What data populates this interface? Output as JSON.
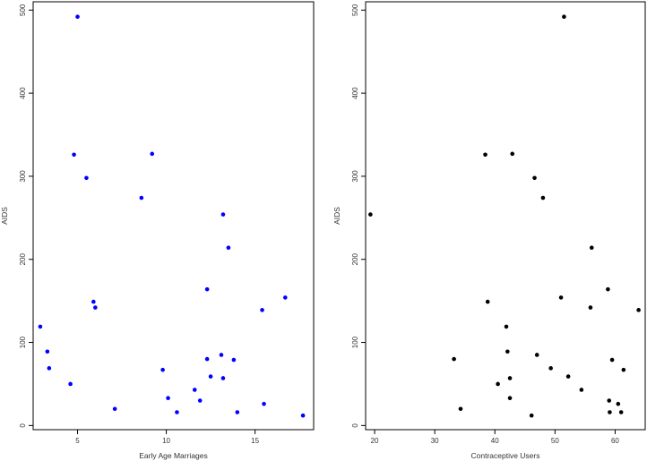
{
  "chart_data": [
    {
      "type": "scatter",
      "xlabel": "Early Age Marriages",
      "ylabel": "AIDS",
      "xlim": [
        2.5,
        18.3
      ],
      "ylim": [
        -5,
        510
      ],
      "xticks": [
        5,
        10,
        15
      ],
      "yticks": [
        0,
        100,
        200,
        300,
        400,
        500
      ],
      "point_color": "#0000ff",
      "grid": false,
      "points": [
        [
          5.0,
          492
        ],
        [
          4.8,
          326
        ],
        [
          5.5,
          298
        ],
        [
          9.2,
          327
        ],
        [
          8.6,
          274
        ],
        [
          13.2,
          254
        ],
        [
          13.5,
          214
        ],
        [
          12.3,
          164
        ],
        [
          16.7,
          154
        ],
        [
          15.4,
          139
        ],
        [
          5.9,
          149
        ],
        [
          6.0,
          142
        ],
        [
          2.9,
          119
        ],
        [
          3.3,
          89
        ],
        [
          3.4,
          69
        ],
        [
          4.6,
          50
        ],
        [
          7.1,
          20
        ],
        [
          9.8,
          67
        ],
        [
          10.1,
          33
        ],
        [
          10.6,
          16
        ],
        [
          11.6,
          43
        ],
        [
          11.9,
          30
        ],
        [
          12.3,
          80
        ],
        [
          12.5,
          59
        ],
        [
          13.1,
          85
        ],
        [
          13.2,
          57
        ],
        [
          13.8,
          79
        ],
        [
          14.0,
          16
        ],
        [
          15.5,
          26
        ],
        [
          17.7,
          12
        ]
      ]
    },
    {
      "type": "scatter",
      "xlabel": "Contraceptive Users",
      "ylabel": "AIDS",
      "xlim": [
        18.5,
        65
      ],
      "ylim": [
        -5,
        510
      ],
      "xticks": [
        20,
        30,
        40,
        50,
        60
      ],
      "yticks": [
        0,
        100,
        200,
        300,
        400,
        500
      ],
      "point_color": "#000000",
      "grid": false,
      "points": [
        [
          51.5,
          492
        ],
        [
          38.4,
          326
        ],
        [
          42.9,
          327
        ],
        [
          46.6,
          298
        ],
        [
          48.0,
          274
        ],
        [
          19.3,
          254
        ],
        [
          56.1,
          214
        ],
        [
          58.8,
          164
        ],
        [
          51.0,
          154
        ],
        [
          55.9,
          142
        ],
        [
          63.9,
          139
        ],
        [
          38.8,
          149
        ],
        [
          41.9,
          119
        ],
        [
          42.1,
          89
        ],
        [
          33.2,
          80
        ],
        [
          47.0,
          85
        ],
        [
          49.3,
          69
        ],
        [
          59.5,
          79
        ],
        [
          61.4,
          67
        ],
        [
          52.2,
          59
        ],
        [
          42.5,
          57
        ],
        [
          40.5,
          50
        ],
        [
          54.4,
          43
        ],
        [
          42.5,
          33
        ],
        [
          34.3,
          20
        ],
        [
          59.0,
          30
        ],
        [
          60.5,
          26
        ],
        [
          59.1,
          16
        ],
        [
          61.0,
          16
        ],
        [
          46.1,
          12
        ]
      ]
    }
  ]
}
